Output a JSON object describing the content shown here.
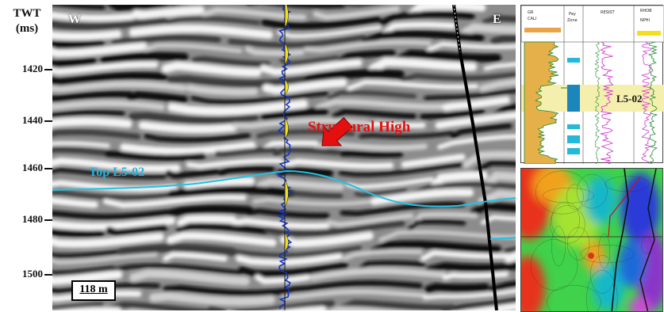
{
  "axis": {
    "title_line1": "TWT",
    "title_line2": "(ms)",
    "ticks": [
      "1420",
      "1440",
      "1460",
      "1480",
      "1500"
    ]
  },
  "section": {
    "west_label": "W",
    "east_label": "E"
  },
  "annotations": {
    "structural_high": "Structural High",
    "horizon": "Top L5-02"
  },
  "scale_bar": "118 m",
  "well_log": {
    "well_name": "L5-02",
    "track1": [
      "GR",
      "CALI"
    ],
    "track2": [
      "Pay",
      "Zone"
    ],
    "track3": "RESIST",
    "track4": [
      "RHOB",
      "NPHI"
    ]
  },
  "colors": {
    "horizon": "#1fc3e6",
    "arrow": "#e41010",
    "annotation": "#e41010",
    "fault": "#000000",
    "pay_zone": "#f5efae"
  }
}
